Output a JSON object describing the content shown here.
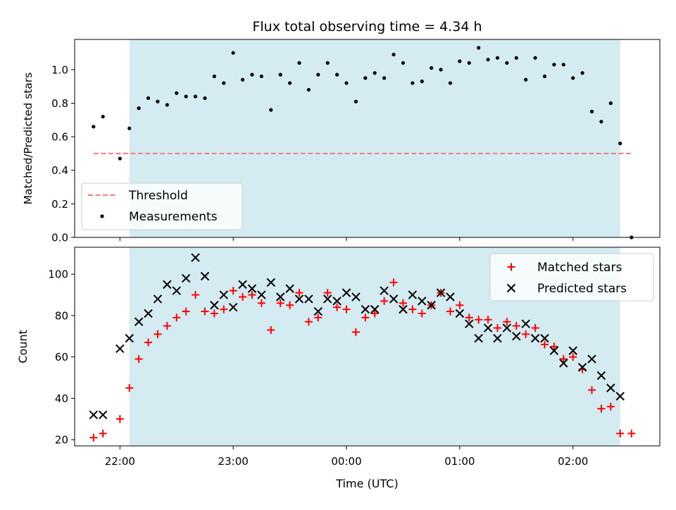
{
  "chart_data": [
    {
      "type": "scatter",
      "title": "Flux total observing time = 4.34 h",
      "xlabel": "",
      "ylabel": "Matched/Predicted stars",
      "ylim": [
        0,
        1.18
      ],
      "xlim": [
        "21:36",
        "02:46"
      ],
      "yticks": [
        "0.0",
        "0.2",
        "0.4",
        "0.6",
        "0.8",
        "1.0"
      ],
      "legend_position": "lower-left",
      "observing_window": {
        "start": "22:05",
        "end": "02:25",
        "color": "#d3ebf1"
      },
      "threshold": {
        "name": "Threshold",
        "value": 0.5,
        "x_start": "21:46",
        "x_end": "02:31",
        "color": "#f07f7f"
      },
      "series": [
        {
          "name": "Measurements",
          "color": "#000000",
          "x": [
            "21:46",
            "21:51",
            "22:00",
            "22:05",
            "22:10",
            "22:15",
            "22:20",
            "22:25",
            "22:30",
            "22:35",
            "22:40",
            "22:45",
            "22:50",
            "22:55",
            "23:00",
            "23:05",
            "23:10",
            "23:15",
            "23:20",
            "23:25",
            "23:30",
            "23:35",
            "23:40",
            "23:45",
            "23:50",
            "23:55",
            "00:00",
            "00:05",
            "00:10",
            "00:15",
            "00:20",
            "00:25",
            "00:30",
            "00:35",
            "00:40",
            "00:45",
            "00:50",
            "00:55",
            "01:00",
            "01:05",
            "01:10",
            "01:15",
            "01:20",
            "01:25",
            "01:30",
            "01:35",
            "01:40",
            "01:45",
            "01:50",
            "01:55",
            "02:00",
            "02:05",
            "02:10",
            "02:15",
            "02:20",
            "02:25",
            "02:31"
          ],
          "y": [
            0.66,
            0.72,
            0.47,
            0.65,
            0.77,
            0.83,
            0.81,
            0.79,
            0.86,
            0.84,
            0.84,
            0.83,
            0.96,
            0.92,
            1.1,
            0.94,
            0.97,
            0.96,
            0.76,
            0.97,
            0.92,
            1.04,
            0.88,
            0.97,
            1.04,
            0.97,
            0.92,
            0.81,
            0.95,
            0.98,
            0.95,
            1.09,
            1.04,
            0.92,
            0.93,
            1.01,
            1.0,
            0.92,
            1.05,
            1.04,
            1.13,
            1.06,
            1.07,
            1.04,
            1.07,
            0.94,
            1.07,
            0.96,
            1.03,
            1.03,
            0.95,
            0.98,
            0.75,
            0.69,
            0.8,
            0.56,
            0.0
          ]
        }
      ]
    },
    {
      "type": "scatter",
      "title": "",
      "xlabel": "Time (UTC)",
      "ylabel": "Count",
      "ylim": [
        17,
        113
      ],
      "xlim": [
        "21:36",
        "02:46"
      ],
      "xticks": [
        "22:00",
        "23:00",
        "00:00",
        "01:00",
        "02:00"
      ],
      "yticks": [
        "20",
        "40",
        "60",
        "80",
        "100"
      ],
      "legend_position": "upper-right",
      "observing_window": {
        "start": "22:05",
        "end": "02:25",
        "color": "#d3ebf1"
      },
      "series": [
        {
          "name": "Matched stars",
          "color": "#ff0000",
          "marker": "plus",
          "x": [
            "21:46",
            "21:51",
            "22:00",
            "22:05",
            "22:10",
            "22:15",
            "22:20",
            "22:25",
            "22:30",
            "22:35",
            "22:40",
            "22:45",
            "22:50",
            "22:55",
            "23:00",
            "23:05",
            "23:10",
            "23:15",
            "23:20",
            "23:25",
            "23:30",
            "23:35",
            "23:40",
            "23:45",
            "23:50",
            "23:55",
            "00:00",
            "00:05",
            "00:10",
            "00:15",
            "00:20",
            "00:25",
            "00:30",
            "00:35",
            "00:40",
            "00:45",
            "00:50",
            "00:55",
            "01:00",
            "01:05",
            "01:10",
            "01:15",
            "01:20",
            "01:25",
            "01:30",
            "01:35",
            "01:40",
            "01:45",
            "01:50",
            "01:55",
            "02:00",
            "02:05",
            "02:10",
            "02:15",
            "02:20",
            "02:25",
            "02:31"
          ],
          "y": [
            21,
            23,
            30,
            45,
            59,
            67,
            71,
            75,
            79,
            82,
            90,
            82,
            81,
            83,
            92,
            89,
            90,
            86,
            73,
            86,
            85,
            91,
            77,
            79,
            91,
            84,
            83,
            72,
            79,
            81,
            87,
            96,
            86,
            83,
            81,
            85,
            91,
            82,
            85,
            79,
            78,
            78,
            74,
            77,
            75,
            71,
            74,
            66,
            65,
            59,
            60,
            54,
            44,
            35,
            36,
            23,
            23
          ]
        },
        {
          "name": "Predicted stars",
          "color": "#000000",
          "marker": "x",
          "x": [
            "21:46",
            "21:51",
            "22:00",
            "22:05",
            "22:10",
            "22:15",
            "22:20",
            "22:25",
            "22:30",
            "22:35",
            "22:40",
            "22:45",
            "22:50",
            "22:55",
            "23:00",
            "23:05",
            "23:10",
            "23:15",
            "23:20",
            "23:25",
            "23:30",
            "23:35",
            "23:40",
            "23:45",
            "23:50",
            "23:55",
            "00:00",
            "00:05",
            "00:10",
            "00:15",
            "00:20",
            "00:25",
            "00:30",
            "00:35",
            "00:40",
            "00:45",
            "00:50",
            "00:55",
            "01:00",
            "01:05",
            "01:10",
            "01:15",
            "01:20",
            "01:25",
            "01:30",
            "01:35",
            "01:40",
            "01:45",
            "01:50",
            "01:55",
            "02:00",
            "02:05",
            "02:10",
            "02:15",
            "02:20",
            "02:25"
          ],
          "y": [
            32,
            32,
            64,
            69,
            77,
            81,
            88,
            95,
            92,
            98,
            108,
            99,
            85,
            90,
            84,
            95,
            93,
            90,
            96,
            89,
            93,
            88,
            88,
            82,
            88,
            87,
            91,
            89,
            83,
            83,
            92,
            88,
            83,
            90,
            87,
            85,
            91,
            89,
            81,
            76,
            69,
            74,
            69,
            74,
            70,
            76,
            69,
            69,
            63,
            57,
            63,
            55,
            59,
            51,
            45,
            41
          ]
        }
      ]
    }
  ]
}
